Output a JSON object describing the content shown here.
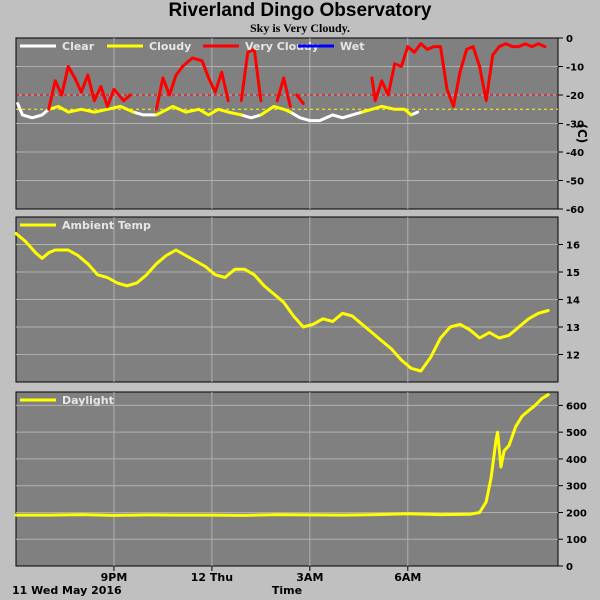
{
  "title": "Riverland Dingo Observatory",
  "subtitle": "Sky is Very Cloudy.",
  "date_label": "11 Wed May 2016",
  "xaxis_label": "Time",
  "x_ticks": [
    {
      "label": "9PM",
      "h": 21
    },
    {
      "label": "12 Thu",
      "h": 24
    },
    {
      "label": "3AM",
      "h": 27
    },
    {
      "label": "6AM",
      "h": 30
    }
  ],
  "colors": {
    "plot_bg": "#808080",
    "grid": "#b0b0b0",
    "clear": "#ffffff",
    "cloudy": "#ffff00",
    "very_cloudy": "#ff0000",
    "wet": "#0000ff"
  },
  "chart_data": [
    {
      "type": "line",
      "legend": [
        "Clear",
        "Cloudy",
        "Very Cloudy",
        "Wet"
      ],
      "ylabel": "(C)",
      "ylim": [
        -60,
        0
      ],
      "yticks": [
        0,
        -10,
        -20,
        -30,
        -40,
        -50,
        -60
      ],
      "thresholds": [
        {
          "value": -20,
          "color": "#ff0000"
        },
        {
          "value": -25,
          "color": "#ffff00"
        }
      ],
      "series": [
        {
          "name": "Clear",
          "color": "#ffffff",
          "segments": [
            [
              [
                18.05,
                -23
              ],
              [
                18.2,
                -27
              ],
              [
                18.5,
                -28
              ],
              [
                18.8,
                -27
              ],
              [
                19.0,
                -25
              ]
            ],
            [
              [
                21.6,
                -26
              ],
              [
                21.9,
                -27
              ],
              [
                22.3,
                -27
              ]
            ],
            [
              [
                24.9,
                -27
              ],
              [
                25.2,
                -28
              ],
              [
                25.5,
                -27
              ]
            ],
            [
              [
                26.4,
                -26
              ],
              [
                26.7,
                -28
              ],
              [
                27.0,
                -29
              ],
              [
                27.3,
                -29
              ],
              [
                27.7,
                -27
              ],
              [
                28.0,
                -28
              ],
              [
                28.3,
                -27
              ],
              [
                28.6,
                -26
              ]
            ],
            [
              [
                30.1,
                -27
              ],
              [
                30.3,
                -26
              ]
            ]
          ]
        },
        {
          "name": "Cloudy",
          "color": "#ffff00",
          "segments": [
            [
              [
                19.0,
                -25
              ],
              [
                19.3,
                -24
              ],
              [
                19.6,
                -26
              ],
              [
                20.0,
                -25
              ],
              [
                20.4,
                -26
              ],
              [
                20.8,
                -25
              ],
              [
                21.2,
                -24
              ],
              [
                21.6,
                -26
              ]
            ],
            [
              [
                22.3,
                -27
              ],
              [
                22.8,
                -24
              ],
              [
                23.2,
                -26
              ],
              [
                23.6,
                -25
              ],
              [
                23.9,
                -27
              ],
              [
                24.2,
                -25
              ],
              [
                24.5,
                -26
              ],
              [
                24.9,
                -27
              ]
            ],
            [
              [
                25.5,
                -27
              ],
              [
                25.9,
                -24
              ],
              [
                26.2,
                -25
              ],
              [
                26.4,
                -26
              ]
            ],
            [
              [
                28.6,
                -26
              ],
              [
                28.9,
                -25
              ],
              [
                29.2,
                -24
              ],
              [
                29.6,
                -25
              ],
              [
                29.9,
                -25
              ],
              [
                30.1,
                -27
              ]
            ]
          ]
        },
        {
          "name": "Very Cloudy",
          "color": "#ff0000",
          "segments": [
            [
              [
                19.0,
                -25
              ],
              [
                19.2,
                -15
              ],
              [
                19.4,
                -20
              ],
              [
                19.6,
                -10
              ],
              [
                19.8,
                -14
              ],
              [
                20.0,
                -19
              ],
              [
                20.2,
                -13
              ],
              [
                20.4,
                -22
              ],
              [
                20.6,
                -17
              ],
              [
                20.8,
                -24
              ],
              [
                21.0,
                -18
              ],
              [
                21.3,
                -22
              ],
              [
                21.5,
                -20
              ]
            ],
            [
              [
                22.3,
                -25
              ],
              [
                22.5,
                -14
              ],
              [
                22.7,
                -20
              ],
              [
                22.9,
                -13
              ],
              [
                23.1,
                -10
              ],
              [
                23.4,
                -7
              ],
              [
                23.7,
                -8
              ],
              [
                23.9,
                -14
              ],
              [
                24.1,
                -19
              ],
              [
                24.3,
                -12
              ],
              [
                24.5,
                -22
              ]
            ],
            [
              [
                24.9,
                -22
              ],
              [
                25.1,
                -5
              ],
              [
                25.3,
                -4
              ],
              [
                25.5,
                -22
              ]
            ],
            [
              [
                26.0,
                -22
              ],
              [
                26.2,
                -14
              ],
              [
                26.4,
                -24
              ]
            ],
            [
              [
                26.6,
                -20
              ],
              [
                26.8,
                -23
              ]
            ],
            [
              [
                28.9,
                -14
              ],
              [
                29.0,
                -22
              ],
              [
                29.2,
                -15
              ],
              [
                29.4,
                -20
              ],
              [
                29.6,
                -9
              ],
              [
                29.8,
                -10
              ],
              [
                30.0,
                -3
              ],
              [
                30.2,
                -5
              ],
              [
                30.4,
                -2
              ],
              [
                30.6,
                -4
              ],
              [
                30.8,
                -3
              ],
              [
                31.0,
                -3
              ],
              [
                31.2,
                -18
              ],
              [
                31.4,
                -24
              ],
              [
                31.6,
                -12
              ],
              [
                31.8,
                -4
              ],
              [
                32.0,
                -3
              ],
              [
                32.2,
                -10
              ],
              [
                32.4,
                -22
              ],
              [
                32.6,
                -6
              ],
              [
                32.8,
                -3
              ],
              [
                33.0,
                -2
              ],
              [
                33.2,
                -3
              ],
              [
                33.4,
                -3
              ],
              [
                33.6,
                -2
              ],
              [
                33.8,
                -3
              ],
              [
                34.0,
                -2
              ],
              [
                34.2,
                -3
              ]
            ]
          ]
        },
        {
          "name": "Wet",
          "color": "#0000ff",
          "segments": []
        }
      ]
    },
    {
      "type": "line",
      "legend": [
        "Ambient Temp"
      ],
      "ylim": [
        11,
        17
      ],
      "yticks": [
        12,
        13,
        14,
        15,
        16
      ],
      "series": [
        {
          "name": "Ambient Temp",
          "color": "#ffff00",
          "segments": [
            [
              [
                18.0,
                16.4
              ],
              [
                18.3,
                16.1
              ],
              [
                18.6,
                15.7
              ],
              [
                18.8,
                15.5
              ],
              [
                19.0,
                15.7
              ],
              [
                19.2,
                15.8
              ],
              [
                19.6,
                15.8
              ],
              [
                19.9,
                15.6
              ],
              [
                20.2,
                15.3
              ],
              [
                20.5,
                14.9
              ],
              [
                20.8,
                14.8
              ],
              [
                21.1,
                14.6
              ],
              [
                21.4,
                14.5
              ],
              [
                21.7,
                14.6
              ],
              [
                22.0,
                14.9
              ],
              [
                22.3,
                15.3
              ],
              [
                22.6,
                15.6
              ],
              [
                22.9,
                15.8
              ],
              [
                23.2,
                15.6
              ],
              [
                23.5,
                15.4
              ],
              [
                23.8,
                15.2
              ],
              [
                24.1,
                14.9
              ],
              [
                24.4,
                14.8
              ],
              [
                24.7,
                15.1
              ],
              [
                25.0,
                15.1
              ],
              [
                25.3,
                14.9
              ],
              [
                25.6,
                14.5
              ],
              [
                25.9,
                14.2
              ],
              [
                26.2,
                13.9
              ],
              [
                26.5,
                13.4
              ],
              [
                26.8,
                13.0
              ],
              [
                27.1,
                13.1
              ],
              [
                27.4,
                13.3
              ],
              [
                27.7,
                13.2
              ],
              [
                28.0,
                13.5
              ],
              [
                28.3,
                13.4
              ],
              [
                28.6,
                13.1
              ],
              [
                28.9,
                12.8
              ],
              [
                29.2,
                12.5
              ],
              [
                29.5,
                12.2
              ],
              [
                29.8,
                11.8
              ],
              [
                30.1,
                11.5
              ],
              [
                30.4,
                11.4
              ],
              [
                30.7,
                11.9
              ],
              [
                31.0,
                12.6
              ],
              [
                31.3,
                13.0
              ],
              [
                31.6,
                13.1
              ],
              [
                31.9,
                12.9
              ],
              [
                32.2,
                12.6
              ],
              [
                32.5,
                12.8
              ],
              [
                32.8,
                12.6
              ],
              [
                33.1,
                12.7
              ],
              [
                33.4,
                13.0
              ],
              [
                33.7,
                13.3
              ],
              [
                34.0,
                13.5
              ],
              [
                34.3,
                13.6
              ]
            ]
          ]
        }
      ]
    },
    {
      "type": "line",
      "legend": [
        "Daylight"
      ],
      "ylim": [
        0,
        650
      ],
      "yticks": [
        0,
        100,
        200,
        300,
        400,
        500,
        600
      ],
      "series": [
        {
          "name": "Daylight",
          "color": "#ffff00",
          "segments": [
            [
              [
                18.0,
                190
              ],
              [
                19.0,
                190
              ],
              [
                20.0,
                192
              ],
              [
                21.0,
                189
              ],
              [
                22.0,
                191
              ],
              [
                23.0,
                190
              ],
              [
                24.0,
                190
              ],
              [
                25.0,
                189
              ],
              [
                26.0,
                192
              ],
              [
                27.0,
                191
              ],
              [
                28.0,
                190
              ],
              [
                29.0,
                192
              ],
              [
                30.0,
                195
              ],
              [
                31.0,
                192
              ],
              [
                31.9,
                193
              ],
              [
                32.2,
                200
              ],
              [
                32.4,
                240
              ],
              [
                32.55,
                330
              ],
              [
                32.7,
                470
              ],
              [
                32.75,
                500
              ],
              [
                32.85,
                370
              ],
              [
                32.95,
                430
              ],
              [
                33.1,
                450
              ],
              [
                33.3,
                520
              ],
              [
                33.5,
                560
              ],
              [
                33.7,
                580
              ],
              [
                33.9,
                600
              ],
              [
                34.1,
                625
              ],
              [
                34.3,
                640
              ]
            ]
          ]
        }
      ]
    }
  ]
}
